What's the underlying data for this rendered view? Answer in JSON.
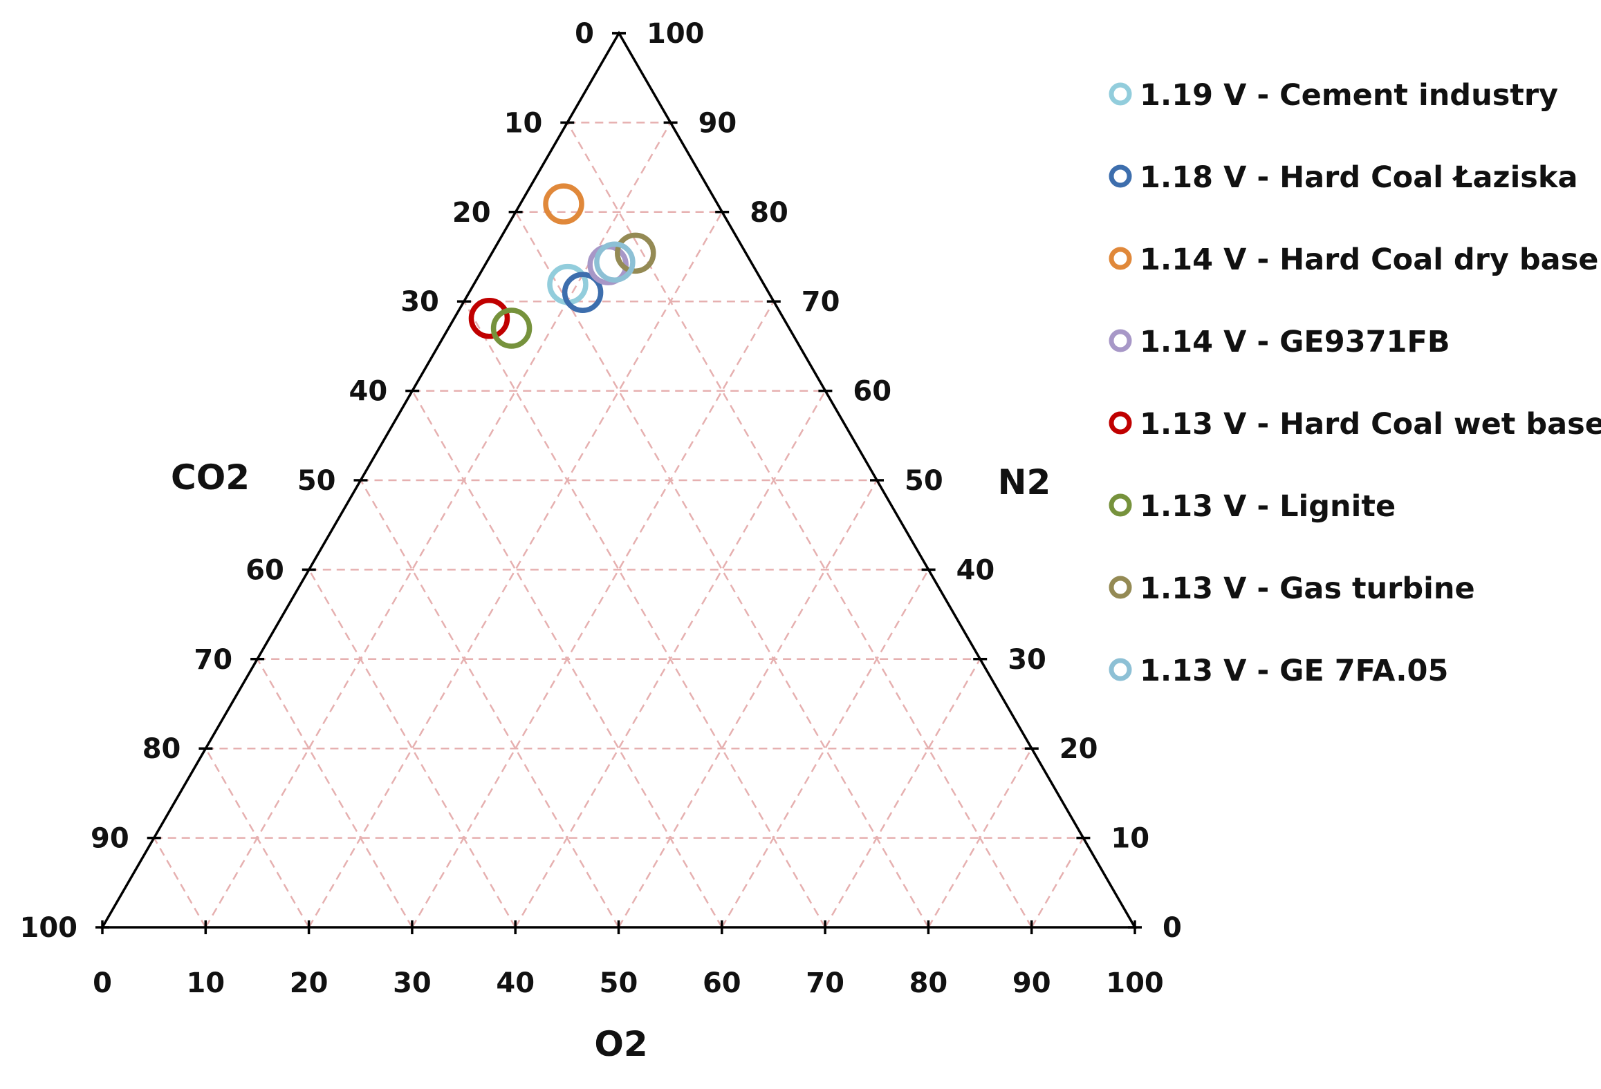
{
  "chart_data": {
    "type": "scatter",
    "subtype": "ternary",
    "axes": {
      "left": "CO2",
      "right": "N2",
      "bottom": "O2"
    },
    "range": [
      0,
      100
    ],
    "tick_step": 10,
    "grid": true,
    "grid_color": "#e6b0b0",
    "legend_position": "right",
    "series": [
      {
        "name": "1.19 V - Cement industry",
        "color": "#92cddc",
        "CO2": 19.0,
        "O2": 9.1,
        "N2": 71.9
      },
      {
        "name": "1.18 V - Hard Coal Łaziska",
        "color": "#3d6ead",
        "CO2": 18.0,
        "O2": 11.0,
        "N2": 71.0
      },
      {
        "name": "1.14 V - Hard Coal dry base",
        "color": "#e0883a",
        "CO2": 14.9,
        "O2": 4.2,
        "N2": 80.9
      },
      {
        "name": "1.14 V - GE9371FB",
        "color": "#a797c7",
        "CO2": 14.0,
        "O2": 11.9,
        "N2": 74.1
      },
      {
        "name": "1.13 V - Hard Coal wet base",
        "color": "#c00000",
        "CO2": 28.5,
        "O2": 3.4,
        "N2": 68.1
      },
      {
        "name": "1.13 V - Lignite",
        "color": "#76923c",
        "CO2": 26.9,
        "O2": 6.1,
        "N2": 67.0
      },
      {
        "name": "1.13 V - Gas turbine",
        "color": "#948a54",
        "CO2": 10.7,
        "O2": 13.9,
        "N2": 75.4
      },
      {
        "name": "1.13 V - GE 7FA.05",
        "color": "#8dc0d5",
        "CO2": 13.2,
        "O2": 12.4,
        "N2": 74.4
      }
    ],
    "left_ticks": [
      "0",
      "10",
      "20",
      "30",
      "40",
      "50",
      "60",
      "70",
      "80",
      "90",
      "100"
    ],
    "right_ticks": [
      "100",
      "90",
      "80",
      "70",
      "60",
      "50",
      "40",
      "30",
      "20",
      "10",
      "0"
    ],
    "bottom_ticks": [
      "0",
      "10",
      "20",
      "30",
      "40",
      "50",
      "60",
      "70",
      "80",
      "90",
      "100"
    ]
  }
}
